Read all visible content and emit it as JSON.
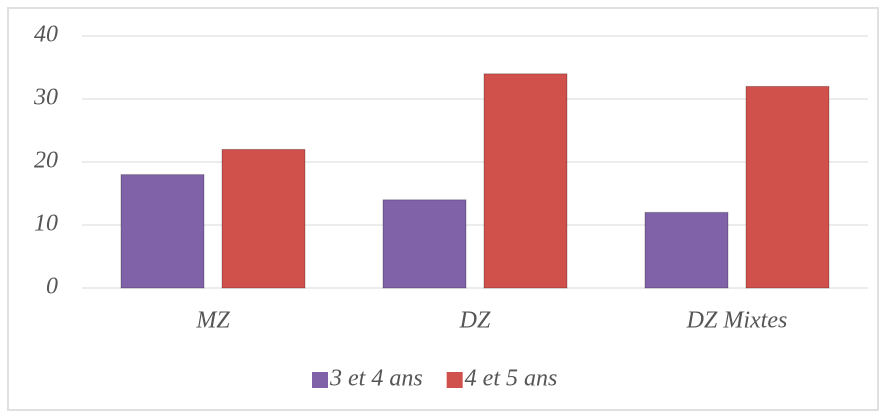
{
  "chart_data": {
    "type": "bar",
    "categories": [
      "MZ",
      "DZ",
      "DZ Mixtes"
    ],
    "series": [
      {
        "name": "3 et 4 ans",
        "color": "#7f62a8",
        "values": [
          18,
          14,
          12
        ]
      },
      {
        "name": "4 et 5 ans",
        "color": "#d0504c",
        "values": [
          22,
          34,
          32
        ]
      }
    ],
    "ylim": [
      0,
      40
    ],
    "yticks": [
      0,
      10,
      20,
      30,
      40
    ],
    "grid": true,
    "legend": "bottom"
  }
}
